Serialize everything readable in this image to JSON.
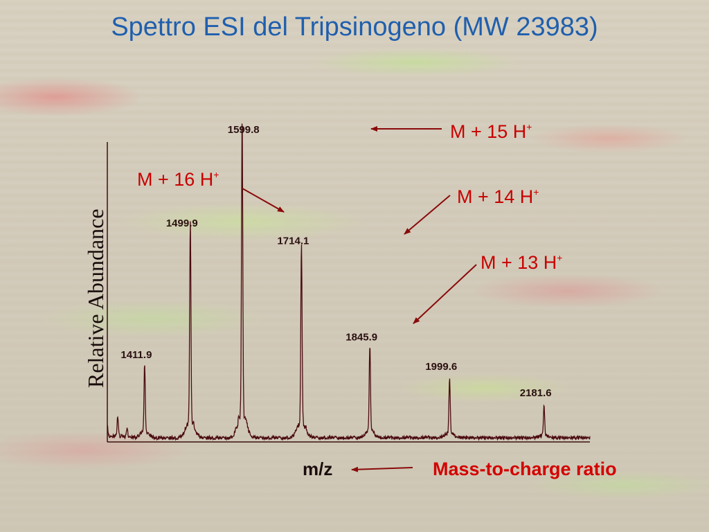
{
  "title": "Spettro ESI del Tripsinogeno (MW 23983)",
  "colors": {
    "title": "#1f5fae",
    "spectrum": "#4a0a10",
    "annotation": "#c80000",
    "axis": "#3a1010"
  },
  "chart_data": {
    "type": "line",
    "ylabel": "Relative Abundance",
    "xlabel": "m/z",
    "xlabel_note": "Mass-to-charge ratio",
    "xlim": [
      1340,
      2270
    ],
    "ylim": [
      0,
      100
    ],
    "peaks": [
      {
        "mz": 1411.9,
        "label": "1411.9",
        "rel": 23
      },
      {
        "mz": 1499.9,
        "label": "1499.9",
        "rel": 68
      },
      {
        "mz": 1599.8,
        "label": "1599.8",
        "rel": 100
      },
      {
        "mz": 1714.1,
        "label": "1714.1",
        "rel": 62
      },
      {
        "mz": 1845.9,
        "label": "1845.9",
        "rel": 29
      },
      {
        "mz": 1999.6,
        "label": "1999.6",
        "rel": 19
      },
      {
        "mz": 2181.6,
        "label": "2181.6",
        "rel": 10
      }
    ],
    "minor_peaks": [
      {
        "mz": 1340,
        "rel": 4
      },
      {
        "mz": 1360,
        "rel": 7
      },
      {
        "mz": 1378,
        "rel": 3
      },
      {
        "mz": 2300,
        "rel": 3
      }
    ],
    "annotations": [
      {
        "base": "M + 15 H",
        "sup": "+",
        "peak": "1599.8"
      },
      {
        "base": "M + 16 H",
        "sup": "+",
        "peak": "1499.9"
      },
      {
        "base": "M + 14 H",
        "sup": "+",
        "peak": "1714.1"
      },
      {
        "base": "M + 13 H",
        "sup": "+",
        "peak": "1845.9"
      }
    ]
  }
}
